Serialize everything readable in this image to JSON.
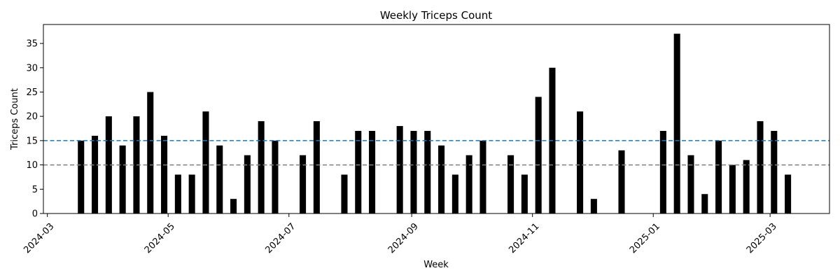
{
  "chart_data": {
    "type": "bar",
    "title": "Weekly Triceps Count",
    "xlabel": "Week",
    "ylabel": "Triceps Count",
    "ylim": [
      0,
      38.9
    ],
    "xlim": [
      "2024-02-28",
      "2025-03-31"
    ],
    "bar_color": "#000000",
    "grid": false,
    "x_ticks": [
      "2024-03",
      "2024-05",
      "2024-07",
      "2024-09",
      "2024-11",
      "2025-01",
      "2025-03"
    ],
    "y_ticks": [
      0,
      5,
      10,
      15,
      20,
      25,
      30,
      35
    ],
    "x": [
      "2024-03-18",
      "2024-03-25",
      "2024-04-01",
      "2024-04-08",
      "2024-04-15",
      "2024-04-22",
      "2024-04-29",
      "2024-05-06",
      "2024-05-13",
      "2024-05-20",
      "2024-05-27",
      "2024-06-03",
      "2024-06-10",
      "2024-06-17",
      "2024-06-24",
      "2024-07-08",
      "2024-07-15",
      "2024-07-29",
      "2024-08-05",
      "2024-08-12",
      "2024-08-26",
      "2024-09-02",
      "2024-09-09",
      "2024-09-16",
      "2024-09-23",
      "2024-09-30",
      "2024-10-07",
      "2024-10-21",
      "2024-10-28",
      "2024-11-04",
      "2024-11-11",
      "2024-11-25",
      "2024-12-02",
      "2024-12-16",
      "2025-01-06",
      "2025-01-13",
      "2025-01-20",
      "2025-01-27",
      "2025-02-03",
      "2025-02-10",
      "2025-02-17",
      "2025-02-24",
      "2025-03-03",
      "2025-03-10"
    ],
    "values": [
      15,
      16,
      20,
      14,
      20,
      25,
      16,
      8,
      8,
      21,
      14,
      3,
      12,
      19,
      15,
      12,
      19,
      8,
      17,
      17,
      18,
      17,
      17,
      14,
      8,
      12,
      15,
      12,
      8,
      24,
      30,
      21,
      3,
      13,
      17,
      37,
      12,
      4,
      15,
      10,
      11,
      19,
      17,
      8
    ],
    "reference_lines": [
      {
        "y": 15,
        "color": "#1f77b4",
        "style": "dashed"
      },
      {
        "y": 10,
        "color": "#7f7f7f",
        "style": "dashed"
      }
    ]
  }
}
